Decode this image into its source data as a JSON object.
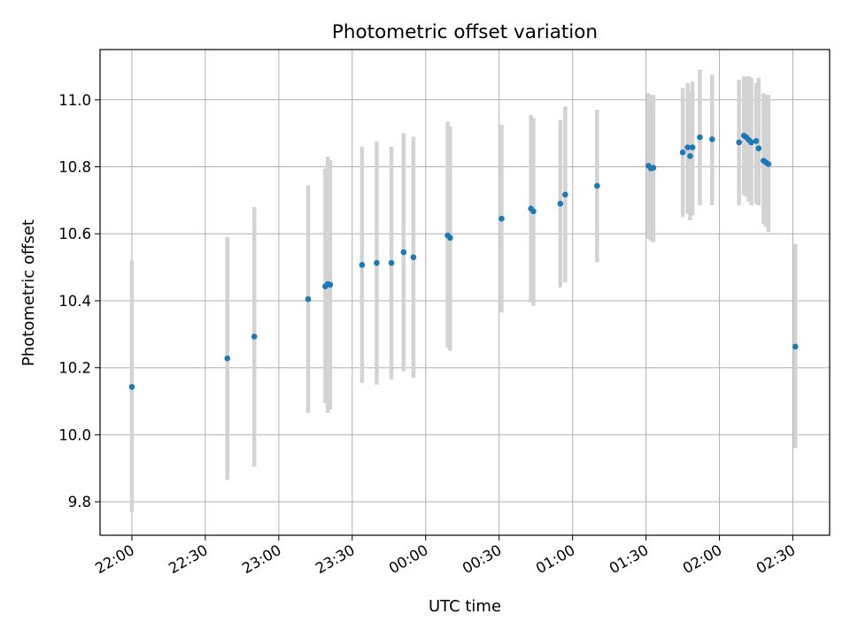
{
  "chart_data": {
    "type": "scatter",
    "title": "Photometric offset variation",
    "xlabel": "UTC time",
    "ylabel": "Photometric offset",
    "x_axis": {
      "type": "time",
      "range": [
        "21:47",
        "02:45"
      ],
      "ticks": [
        "22:00",
        "22:30",
        "23:00",
        "23:30",
        "00:00",
        "00:30",
        "01:00",
        "01:30",
        "02:00",
        "02:30"
      ]
    },
    "y_axis": {
      "range": [
        9.7,
        11.15
      ],
      "ticks": [
        "9.8",
        "10.0",
        "10.2",
        "10.4",
        "10.6",
        "10.8",
        "11.0"
      ]
    },
    "grid": true,
    "point_color": "#1f77b4",
    "errorbar_color": "#d3d3d3",
    "points": [
      {
        "t": "22:00",
        "y": 10.143,
        "lo": 9.77,
        "hi": 10.52
      },
      {
        "t": "22:39",
        "y": 10.228,
        "lo": 9.865,
        "hi": 10.59
      },
      {
        "t": "22:50",
        "y": 10.293,
        "lo": 9.905,
        "hi": 10.68
      },
      {
        "t": "23:12",
        "y": 10.405,
        "lo": 10.065,
        "hi": 10.745
      },
      {
        "t": "23:19",
        "y": 10.443,
        "lo": 10.095,
        "hi": 10.795
      },
      {
        "t": "23:20",
        "y": 10.45,
        "lo": 10.065,
        "hi": 10.83
      },
      {
        "t": "23:21",
        "y": 10.448,
        "lo": 10.075,
        "hi": 10.82
      },
      {
        "t": "23:34",
        "y": 10.507,
        "lo": 10.155,
        "hi": 10.86
      },
      {
        "t": "23:40",
        "y": 10.513,
        "lo": 10.15,
        "hi": 10.875
      },
      {
        "t": "23:46",
        "y": 10.513,
        "lo": 10.165,
        "hi": 10.86
      },
      {
        "t": "23:51",
        "y": 10.545,
        "lo": 10.19,
        "hi": 10.9
      },
      {
        "t": "23:55",
        "y": 10.53,
        "lo": 10.17,
        "hi": 10.89
      },
      {
        "t": "00:09",
        "y": 10.595,
        "lo": 10.26,
        "hi": 10.935
      },
      {
        "t": "00:10",
        "y": 10.588,
        "lo": 10.25,
        "hi": 10.92
      },
      {
        "t": "00:31",
        "y": 10.645,
        "lo": 10.365,
        "hi": 10.925
      },
      {
        "t": "00:43",
        "y": 10.675,
        "lo": 10.395,
        "hi": 10.955
      },
      {
        "t": "00:44",
        "y": 10.667,
        "lo": 10.385,
        "hi": 10.945
      },
      {
        "t": "00:55",
        "y": 10.69,
        "lo": 10.44,
        "hi": 10.94
      },
      {
        "t": "00:57",
        "y": 10.717,
        "lo": 10.455,
        "hi": 10.98
      },
      {
        "t": "01:10",
        "y": 10.743,
        "lo": 10.515,
        "hi": 10.97
      },
      {
        "t": "01:31",
        "y": 10.803,
        "lo": 10.585,
        "hi": 11.02
      },
      {
        "t": "01:32",
        "y": 10.795,
        "lo": 10.58,
        "hi": 11.015
      },
      {
        "t": "01:33",
        "y": 10.797,
        "lo": 10.575,
        "hi": 11.015
      },
      {
        "t": "01:45",
        "y": 10.843,
        "lo": 10.65,
        "hi": 11.035
      },
      {
        "t": "01:47",
        "y": 10.858,
        "lo": 10.66,
        "hi": 11.05
      },
      {
        "t": "01:48",
        "y": 10.832,
        "lo": 10.64,
        "hi": 11.025
      },
      {
        "t": "01:49",
        "y": 10.858,
        "lo": 10.655,
        "hi": 11.055
      },
      {
        "t": "01:52",
        "y": 10.888,
        "lo": 10.685,
        "hi": 11.09
      },
      {
        "t": "01:57",
        "y": 10.882,
        "lo": 10.685,
        "hi": 11.075
      },
      {
        "t": "02:08",
        "y": 10.873,
        "lo": 10.685,
        "hi": 11.06
      },
      {
        "t": "02:10",
        "y": 10.893,
        "lo": 10.715,
        "hi": 11.07
      },
      {
        "t": "02:11",
        "y": 10.888,
        "lo": 10.71,
        "hi": 11.07
      },
      {
        "t": "02:12",
        "y": 10.88,
        "lo": 10.695,
        "hi": 11.07
      },
      {
        "t": "02:13",
        "y": 10.873,
        "lo": 10.685,
        "hi": 11.065
      },
      {
        "t": "02:15",
        "y": 10.877,
        "lo": 10.69,
        "hi": 11.05
      },
      {
        "t": "02:16",
        "y": 10.855,
        "lo": 10.685,
        "hi": 11.065
      },
      {
        "t": "02:18",
        "y": 10.818,
        "lo": 10.63,
        "hi": 11.02
      },
      {
        "t": "02:19",
        "y": 10.813,
        "lo": 10.62,
        "hi": 11.015
      },
      {
        "t": "02:20",
        "y": 10.808,
        "lo": 10.605,
        "hi": 11.015
      },
      {
        "t": "02:31",
        "y": 10.263,
        "lo": 9.96,
        "hi": 10.57
      }
    ]
  }
}
